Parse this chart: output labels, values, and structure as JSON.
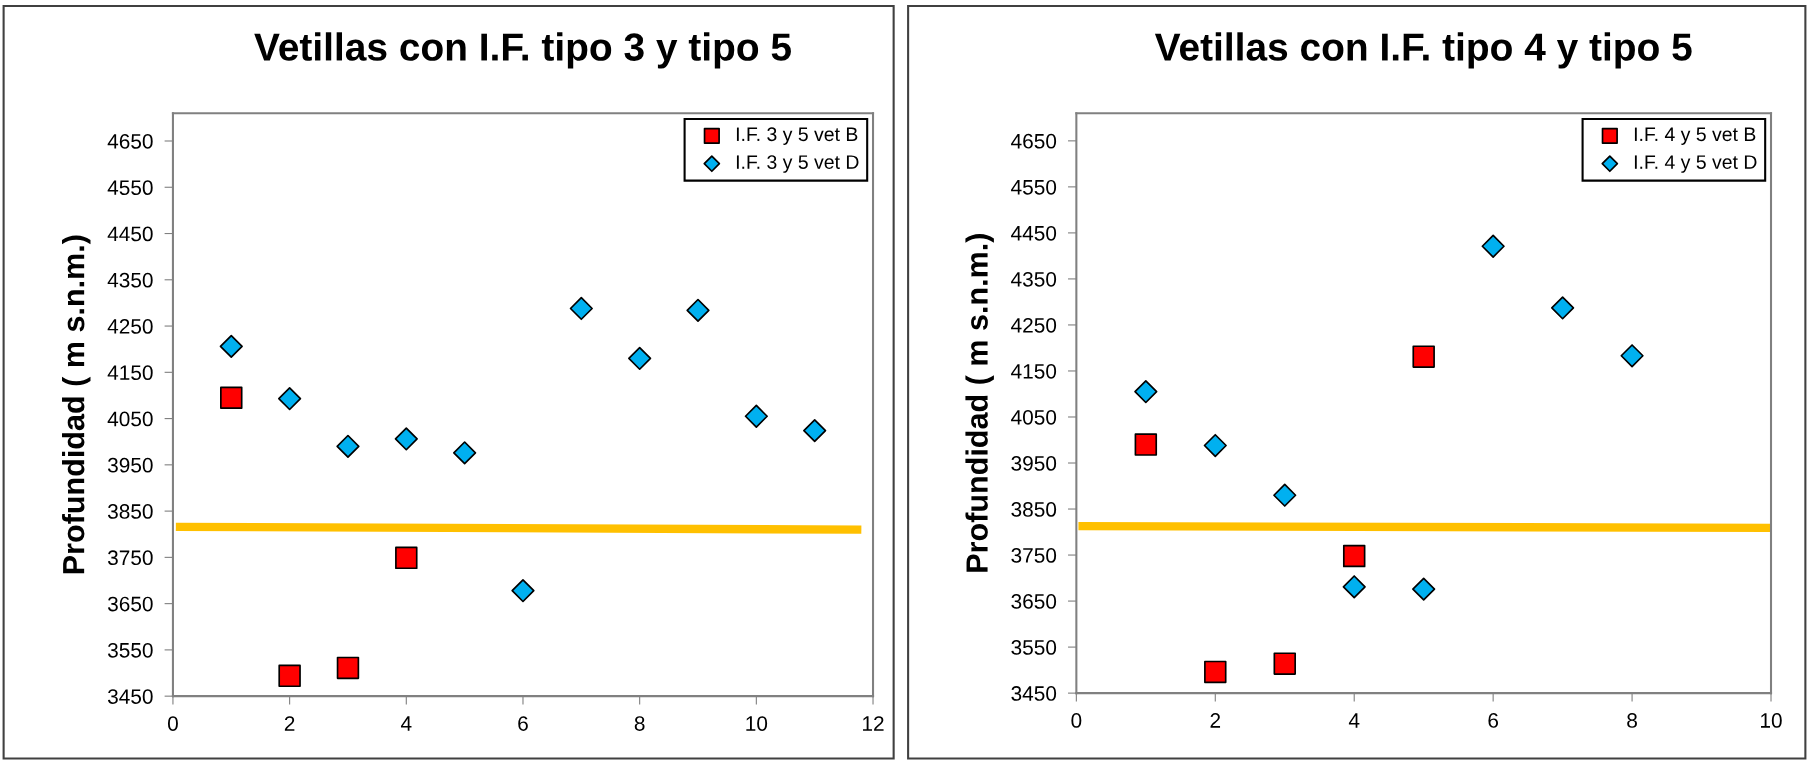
{
  "chart_data": [
    {
      "type": "scatter",
      "title": "Vetillas con I.F. tipo 3 y tipo 5",
      "ylabel": "Profundidad ( m s.n.m.)",
      "xlim": [
        0,
        12
      ],
      "xticks": [
        0,
        2,
        4,
        6,
        8,
        10,
        12
      ],
      "ylim": [
        3450,
        4710
      ],
      "yticks": [
        3450,
        3550,
        3650,
        3750,
        3850,
        3950,
        4050,
        4150,
        4250,
        4350,
        4450,
        4550,
        4650
      ],
      "grid": false,
      "legend": "top right",
      "series": [
        {
          "name": "I.F. 3 y 5 vet B",
          "color": "#ff0000",
          "marker": "square",
          "x": [
            1,
            2,
            3,
            4
          ],
          "values": [
            4095,
            3494,
            3511,
            3749
          ]
        },
        {
          "name": "I.F. 3 y 5 vet D",
          "color": "#00b0f0",
          "marker": "diamond",
          "x": [
            1,
            2,
            3,
            4,
            5,
            6,
            7,
            8,
            9,
            10,
            11
          ],
          "values": [
            4206,
            4093,
            3990,
            4006,
            3976,
            3678,
            4288,
            4180,
            4284,
            4055,
            4024
          ]
        },
        {
          "type": "line",
          "color": "#ffc000",
          "marker": "none",
          "x": [
            0.05,
            11.8
          ],
          "values": [
            3816,
            3810
          ]
        }
      ]
    },
    {
      "type": "scatter",
      "title": "Vetillas con I.F. tipo 4 y tipo 5",
      "ylabel": "Profundidad ( m s.n.m.)",
      "xlim": [
        0,
        10
      ],
      "xticks": [
        0,
        2,
        4,
        6,
        8,
        10
      ],
      "ylim": [
        3450,
        4710
      ],
      "yticks": [
        3450,
        3550,
        3650,
        3750,
        3850,
        3950,
        4050,
        4150,
        4250,
        4350,
        4450,
        4550,
        4650
      ],
      "grid": false,
      "legend": "top right",
      "series": [
        {
          "name": "I.F. 4 y 5 vet B",
          "color": "#ff0000",
          "marker": "square",
          "x": [
            1,
            2,
            3,
            4,
            5
          ],
          "values": [
            3990,
            3496,
            3514,
            3748,
            4181
          ]
        },
        {
          "name": "I.F. 4 y 5 vet D",
          "color": "#00b0f0",
          "marker": "diamond",
          "x": [
            1,
            2,
            3,
            4,
            5,
            6,
            7,
            8
          ],
          "values": [
            4105,
            3988,
            3880,
            3681,
            3676,
            4421,
            4287,
            4183
          ]
        },
        {
          "type": "line",
          "color": "#ffc000",
          "marker": "none",
          "x": [
            0.03,
            10
          ],
          "values": [
            3813,
            3809
          ]
        }
      ]
    }
  ]
}
